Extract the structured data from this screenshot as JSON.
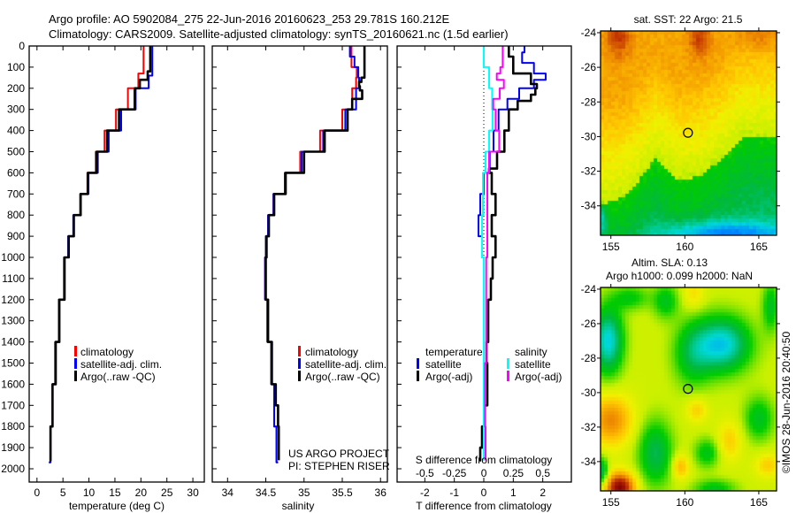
{
  "title": {
    "line1": "Argo profile: AO 5902084_275 22-Jun-2016 20160623_253 29.781S 160.212E",
    "line2": "Climatology: CARS2009. Satellite-adjusted climatology: synTS_20160621.nc (1.5d earlier)"
  },
  "depth_ticks": [
    "0",
    "100",
    "200",
    "300",
    "400",
    "500",
    "600",
    "700",
    "800",
    "900",
    "1000",
    "1100",
    "1200",
    "1300",
    "1400",
    "1500",
    "1600",
    "1700",
    "1800",
    "1900",
    "2000"
  ],
  "chart_data": [
    {
      "type": "line",
      "name": "temperature-profile",
      "xlabel": "temperature (deg C)",
      "ylabel": "depth",
      "xlim": [
        -1.5,
        32.2
      ],
      "ylim": [
        0,
        2060
      ],
      "y_inverted": true,
      "xticks": [
        "0",
        "5",
        "10",
        "15",
        "20",
        "25",
        "30"
      ],
      "xtick_values": [
        0,
        5,
        10,
        15,
        20,
        25,
        30
      ],
      "legend": [
        "climatology",
        "satellite-adj. clim.",
        "Argo(..raw -QC)"
      ],
      "legend_placement": "lower-center",
      "series": [
        {
          "name": "climatology",
          "color": "#ff0000",
          "depth": [
            0,
            100,
            130,
            200,
            300,
            400,
            500,
            600,
            700,
            800,
            900,
            1000,
            1200,
            1400,
            1600,
            1800,
            1970
          ],
          "values": [
            20.5,
            20.5,
            19.5,
            17.5,
            15.2,
            13.0,
            11.3,
            9.7,
            8.3,
            7.0,
            6.0,
            5.2,
            4.2,
            3.5,
            3.0,
            2.6,
            2.3
          ]
        },
        {
          "name": "satellite-adj. clim.",
          "color": "#0000ff",
          "depth": [
            0,
            130,
            140,
            200,
            300,
            400,
            500,
            600,
            700,
            800,
            900,
            1000,
            1200,
            1400,
            1600,
            1800,
            1970
          ],
          "values": [
            22.2,
            22.2,
            21.5,
            19.0,
            16.2,
            13.8,
            11.7,
            9.9,
            8.4,
            7.0,
            6.0,
            5.2,
            4.2,
            3.5,
            3.0,
            2.6,
            2.3
          ]
        },
        {
          "name": "Argo(..raw -QC)",
          "color": "#000000",
          "depth": [
            0,
            100,
            120,
            160,
            200,
            300,
            400,
            500,
            600,
            700,
            800,
            900,
            1000,
            1200,
            1400,
            1600,
            1800,
            1960
          ],
          "values": [
            21.8,
            21.8,
            21.3,
            19.8,
            18.8,
            15.8,
            13.5,
            11.5,
            9.8,
            8.4,
            7.1,
            6.1,
            5.3,
            4.3,
            3.6,
            3.0,
            2.6,
            2.4
          ]
        }
      ]
    },
    {
      "type": "line",
      "name": "salinity-profile",
      "xlabel": "salinity",
      "xlim": [
        33.8,
        36.09
      ],
      "ylim": [
        0,
        2060
      ],
      "y_inverted": true,
      "xticks": [
        "34",
        "34.5",
        "35",
        "35.5",
        "36"
      ],
      "xtick_values": [
        34,
        34.5,
        35,
        35.5,
        36
      ],
      "legend": [
        "climatology",
        "satellite-adj. clim.",
        "Argo(..raw -QC)"
      ],
      "annotation": [
        "US ARGO PROJECT",
        "PI: STEPHEN RISER"
      ],
      "series": [
        {
          "name": "climatology",
          "color": "#ff0000",
          "depth": [
            0,
            100,
            150,
            200,
            300,
            400,
            500,
            600,
            700,
            800,
            900,
            1000,
            1200,
            1400,
            1600,
            1800,
            1970
          ],
          "values": [
            35.62,
            35.69,
            35.68,
            35.63,
            35.5,
            35.21,
            34.95,
            34.75,
            34.6,
            34.53,
            34.5,
            34.49,
            34.52,
            34.57,
            34.61,
            34.64,
            34.66
          ]
        },
        {
          "name": "satellite-adj. clim.",
          "color": "#0000ff",
          "depth": [
            0,
            50,
            100,
            150,
            200,
            300,
            400,
            500,
            600,
            700,
            800,
            900,
            1000,
            1200,
            1400,
            1600,
            1800,
            1970
          ],
          "values": [
            35.6,
            35.66,
            35.71,
            35.72,
            35.68,
            35.54,
            35.25,
            34.97,
            34.75,
            34.6,
            34.53,
            34.5,
            34.49,
            34.52,
            34.57,
            34.61,
            34.64,
            34.66
          ]
        },
        {
          "name": "Argo(..raw -QC)",
          "color": "#000000",
          "depth": [
            0,
            100,
            130,
            150,
            170,
            190,
            210,
            250,
            300,
            400,
            500,
            600,
            700,
            800,
            900,
            1000,
            1200,
            1400,
            1600,
            1700,
            1800,
            1960
          ],
          "values": [
            35.79,
            35.79,
            35.79,
            35.75,
            35.72,
            35.73,
            35.76,
            35.63,
            35.57,
            35.27,
            35.0,
            34.76,
            34.61,
            34.54,
            34.51,
            34.5,
            34.53,
            34.58,
            34.63,
            34.66,
            34.67,
            34.67
          ]
        }
      ]
    },
    {
      "type": "line",
      "name": "difference-profile",
      "xlabel": "T difference from climatology",
      "x2label": "S difference from climatology",
      "xlim": [
        -2.94,
        2.97
      ],
      "x2lim": [
        -0.735,
        0.742
      ],
      "ylim": [
        0,
        2060
      ],
      "y_inverted": true,
      "xticks": [
        "-2",
        "-1",
        "0",
        "1",
        "2"
      ],
      "xtick_values": [
        -2,
        -1,
        0,
        1,
        2
      ],
      "x2ticks": [
        "-0.5",
        "-0.25",
        "0",
        "0.25",
        "0.5"
      ],
      "x2tick_values": [
        -0.5,
        -0.25,
        0,
        0.25,
        0.5
      ],
      "legend_groups": [
        {
          "heading": "temperature",
          "items": [
            "satellite",
            "Argo(-adj)"
          ]
        },
        {
          "heading": "salinity",
          "items": [
            "satellite",
            "Argo(-adj)"
          ]
        }
      ],
      "series": [
        {
          "name": "T satellite",
          "axis": "T",
          "color": "#0000ff",
          "depth": [
            0,
            30,
            80,
            130,
            160,
            200,
            250,
            300,
            400,
            500,
            600,
            700,
            800,
            900,
            1000,
            1200,
            1500,
            1900,
            1960
          ],
          "values": [
            1.38,
            1.3,
            1.7,
            2.1,
            1.7,
            1.2,
            0.8,
            0.5,
            0.33,
            0.2,
            0.0,
            -0.12,
            -0.18,
            -0.06,
            0.0,
            0.0,
            0.0,
            0.0,
            0.0
          ]
        },
        {
          "name": "T Argo(-adj)",
          "axis": "T",
          "color": "#000000",
          "depth": [
            0,
            50,
            100,
            130,
            180,
            200,
            230,
            260,
            300,
            400,
            500,
            580,
            600,
            700,
            800,
            900,
            1000,
            1100,
            1200,
            1400,
            1500,
            1700,
            1800,
            1900,
            1960
          ],
          "values": [
            0.85,
            1.0,
            1.0,
            1.6,
            1.8,
            1.75,
            1.6,
            1.15,
            0.85,
            0.7,
            0.45,
            0.18,
            0.27,
            0.4,
            0.27,
            0.4,
            0.3,
            0.24,
            0.15,
            0.09,
            0.12,
            0.03,
            -0.06,
            -0.12,
            -0.09
          ]
        },
        {
          "name": "S satellite",
          "axis": "S",
          "color": "#00ffff",
          "depth": [
            0,
            100,
            200,
            300,
            400,
            500,
            600,
            800,
            1000,
            1500,
            1960
          ],
          "values": [
            0.0,
            0.045,
            0.07,
            0.075,
            0.045,
            0.015,
            -0.008,
            -0.015,
            0.0,
            0.0,
            0.0
          ]
        },
        {
          "name": "S Argo(-adj)",
          "axis": "S",
          "color": "#ff00ff",
          "depth": [
            0,
            100,
            130,
            160,
            200,
            250,
            300,
            400,
            500,
            600,
            800,
            1000,
            1500,
            1800,
            1960
          ],
          "values": [
            0.16,
            0.14,
            0.11,
            0.17,
            0.135,
            0.08,
            0.1,
            0.13,
            0.045,
            0.03,
            0.03,
            0.02,
            0.01,
            0.015,
            0.015
          ]
        }
      ]
    }
  ],
  "maps": {
    "sst": {
      "title": "sat. SST: 22 Argo: 21.5"
    },
    "sla": {
      "title1": "Altim. SLA: 0.13",
      "title2": "Argo h1000: 0.099 h2000: NaN"
    },
    "lat_ticks": [
      "-24",
      "-26",
      "-28",
      "-30",
      "-32",
      "-34"
    ],
    "lat_values": [
      -24,
      -26,
      -28,
      -30,
      -32,
      -34
    ],
    "lon_ticks": [
      "155",
      "160",
      "165"
    ],
    "lon_values": [
      155,
      160,
      165
    ],
    "lon_range": [
      154.3,
      166.2
    ],
    "lat_range": [
      -23.9,
      -35.7
    ],
    "profile_location": {
      "lon": 160.212,
      "lat": -29.781
    }
  },
  "credit": "©IMOS 28-Jun-2016 20:40:50"
}
